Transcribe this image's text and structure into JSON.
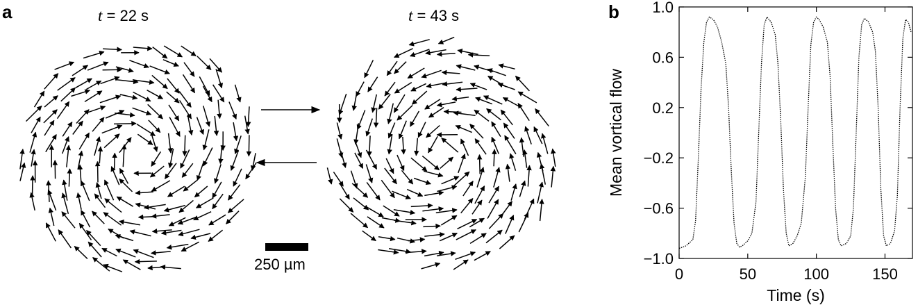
{
  "figure": {
    "panel_a_letter": "a",
    "panel_b_letter": "b",
    "snapshot_1_time_var": "t",
    "snapshot_1_time_value": " = 22 s",
    "snapshot_2_time_var": "t",
    "snapshot_2_time_value": " = 43 s",
    "scale_bar_label": "250 µm",
    "transition_arrow_forward": "right-arrow-icon",
    "transition_arrow_back": "left-arrow-icon",
    "vortex_1_rotation": "clockwise",
    "vortex_2_rotation": "counterclockwise"
  },
  "chart_data": {
    "type": "line",
    "title": "",
    "xlabel": "Time (s)",
    "ylabel": "Mean vortical flow",
    "xlim": [
      0,
      170
    ],
    "ylim": [
      -1.0,
      1.0
    ],
    "xticks": [
      0,
      50,
      100,
      150
    ],
    "xtick_labels": [
      "0",
      "50",
      "100",
      "150"
    ],
    "yticks": [
      1.0,
      0.6,
      0.2,
      -0.2,
      -0.6,
      -1.0
    ],
    "ytick_labels": [
      "1.0",
      "0.6",
      "0.2",
      "−0.2",
      "−0.6",
      "−1.0"
    ],
    "grid": false,
    "series": [
      {
        "style": "dotted",
        "color": "#000000",
        "x": [
          0,
          5,
          10,
          12,
          14,
          16,
          18,
          20,
          22,
          25,
          28,
          31,
          34,
          36,
          38,
          40,
          42,
          44,
          46,
          50,
          53,
          56,
          58,
          60,
          62,
          64,
          67,
          70,
          72,
          74,
          76,
          78,
          80,
          83,
          86,
          89,
          92,
          94,
          96,
          98,
          100,
          102,
          105,
          108,
          110,
          112,
          114,
          116,
          118,
          122,
          125,
          127,
          129,
          131,
          133,
          135,
          138,
          141,
          143,
          145,
          147,
          149,
          151,
          154,
          157,
          159,
          161,
          163,
          165,
          167,
          169
        ],
        "y": [
          -0.92,
          -0.9,
          -0.85,
          -0.7,
          -0.2,
          0.35,
          0.72,
          0.88,
          0.92,
          0.9,
          0.84,
          0.72,
          0.55,
          0.2,
          -0.3,
          -0.72,
          -0.88,
          -0.91,
          -0.9,
          -0.86,
          -0.8,
          -0.55,
          0.0,
          0.55,
          0.86,
          0.92,
          0.88,
          0.78,
          0.55,
          0.1,
          -0.45,
          -0.8,
          -0.9,
          -0.88,
          -0.82,
          -0.72,
          -0.35,
          0.2,
          0.7,
          0.88,
          0.92,
          0.9,
          0.84,
          0.72,
          0.45,
          -0.1,
          -0.6,
          -0.85,
          -0.9,
          -0.88,
          -0.82,
          -0.6,
          0.0,
          0.6,
          0.86,
          0.91,
          0.88,
          0.8,
          0.65,
          0.2,
          -0.45,
          -0.82,
          -0.9,
          -0.88,
          -0.78,
          -0.5,
          0.2,
          0.75,
          0.9,
          0.88,
          0.8
        ]
      }
    ]
  }
}
